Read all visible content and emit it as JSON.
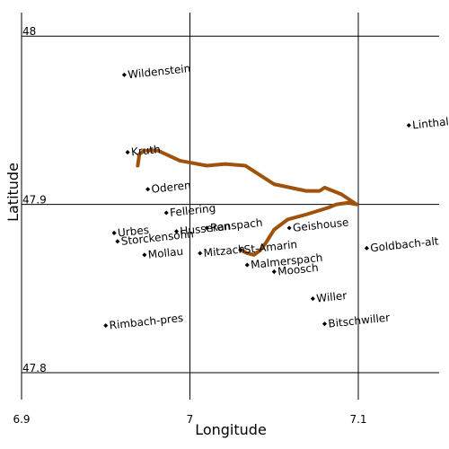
{
  "chart_data": {
    "type": "map",
    "x_label": "Longitude",
    "y_label": "Latitude",
    "xlim": [
      6.9,
      7.148
    ],
    "ylim": [
      47.784,
      48.014
    ],
    "xticks": [
      6.9,
      7,
      7.1
    ],
    "yticks": [
      47.8,
      47.9,
      48
    ],
    "grid": true,
    "places": {
      "names": [
        "Wildenstein",
        "Linthal",
        "Kruth",
        "Oderen",
        "Fellering",
        "Urbes",
        "Storckensohn",
        "Husseren",
        "Ranspach",
        "Geishouse",
        "Goldbach-alt",
        "Mollau",
        "Mitzach",
        "St-Amarin",
        "Malmerspach",
        "Moosch",
        "Willer",
        "Bitschwiller",
        "Rimbach-pres"
      ],
      "x": [
        6.961,
        7.13,
        6.963,
        6.975,
        6.986,
        6.955,
        6.957,
        6.992,
        7.01,
        7.059,
        7.105,
        6.973,
        7.006,
        7.03,
        7.034,
        7.05,
        7.073,
        7.08,
        6.95
      ],
      "y": [
        47.977,
        47.947,
        47.931,
        47.909,
        47.895,
        47.883,
        47.878,
        47.884,
        47.886,
        47.886,
        47.874,
        47.87,
        47.871,
        47.873,
        47.864,
        47.86,
        47.844,
        47.829,
        47.828
      ],
      "color": "#000000"
    },
    "track": {
      "color": "#a0520a",
      "x": [
        6.969,
        6.97,
        6.973,
        6.981,
        6.994,
        7.01,
        7.021,
        7.033,
        7.05,
        7.069,
        7.077,
        7.08,
        7.09,
        7.099,
        7.094,
        7.087,
        7.082,
        7.069,
        7.058,
        7.05,
        7.045,
        7.042,
        7.038,
        7.034,
        7.03
      ],
      "y": [
        47.923,
        47.93,
        47.932,
        47.932,
        47.926,
        47.923,
        47.924,
        47.923,
        47.912,
        47.908,
        47.908,
        47.91,
        47.906,
        47.9,
        47.901,
        47.9,
        47.898,
        47.894,
        47.891,
        47.885,
        47.877,
        47.873,
        47.87,
        47.871,
        47.873
      ]
    }
  }
}
